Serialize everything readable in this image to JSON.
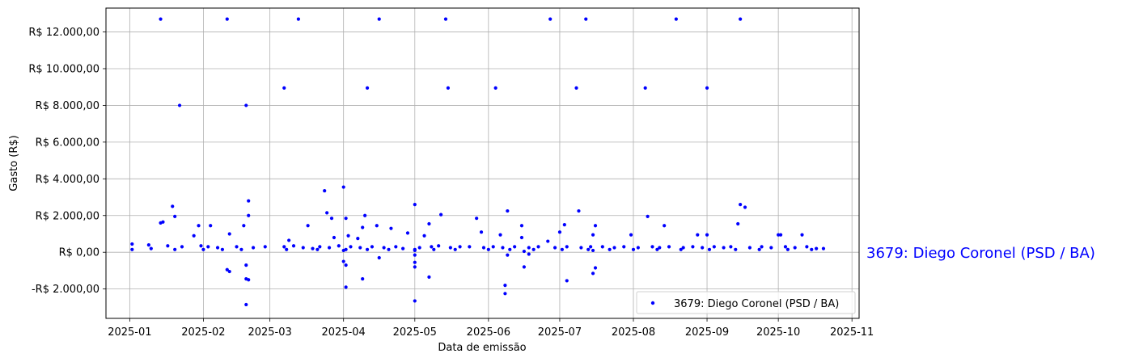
{
  "chart_data": {
    "type": "scatter",
    "title": "",
    "xlabel": "Data de emissão",
    "ylabel": "Gasto (R$)",
    "x_is_date": true,
    "xlim": [
      "2024-12-22",
      "2025-11-04"
    ],
    "ylim": [
      -3600,
      13300
    ],
    "xticks": [
      "2025-01-01",
      "2025-02-01",
      "2025-03-01",
      "2025-04-01",
      "2025-05-01",
      "2025-06-01",
      "2025-07-01",
      "2025-08-01",
      "2025-09-01",
      "2025-10-01",
      "2025-11-01"
    ],
    "xtick_labels": [
      "2025-01",
      "2025-02",
      "2025-03",
      "2025-04",
      "2025-05",
      "2025-06",
      "2025-07",
      "2025-08",
      "2025-09",
      "2025-10",
      "2025-11"
    ],
    "yticks": [
      -2000,
      0,
      2000,
      4000,
      6000,
      8000,
      10000,
      12000
    ],
    "ytick_labels": [
      "-R$ 2.000,00",
      "R$ 0,00",
      "R$ 2.000,00",
      "R$ 4.000,00",
      "R$ 6.000,00",
      "R$ 8.000,00",
      "R$ 10.000,00",
      "R$ 12.000,00"
    ],
    "grid": true,
    "legend_placement": "lower-right",
    "side_label": "3679: Diego Coronel (PSD / BA)",
    "series": [
      {
        "name": "3679: Diego Coronel (PSD / BA)",
        "color": "#0000ff",
        "points": [
          [
            "2025-01-14",
            12700
          ],
          [
            "2025-02-11",
            12700
          ],
          [
            "2025-03-13",
            12700
          ],
          [
            "2025-04-16",
            12700
          ],
          [
            "2025-05-14",
            12700
          ],
          [
            "2025-06-27",
            12700
          ],
          [
            "2025-07-12",
            12700
          ],
          [
            "2025-08-19",
            12700
          ],
          [
            "2025-09-15",
            12700
          ],
          [
            "2025-03-07",
            8950
          ],
          [
            "2025-04-11",
            8950
          ],
          [
            "2025-05-15",
            8950
          ],
          [
            "2025-06-04",
            8950
          ],
          [
            "2025-07-08",
            8950
          ],
          [
            "2025-08-06",
            8950
          ],
          [
            "2025-09-01",
            8950
          ],
          [
            "2025-01-22",
            8000
          ],
          [
            "2025-02-19",
            8000
          ],
          [
            "2025-04-01",
            3550
          ],
          [
            "2025-03-24",
            3350
          ],
          [
            "2025-02-20",
            2800
          ],
          [
            "2025-05-01",
            2600
          ],
          [
            "2025-09-15",
            2600
          ],
          [
            "2025-01-19",
            2500
          ],
          [
            "2025-09-17",
            2450
          ],
          [
            "2025-06-09",
            2250
          ],
          [
            "2025-07-09",
            2250
          ],
          [
            "2025-03-25",
            2150
          ],
          [
            "2025-05-12",
            2050
          ],
          [
            "2025-04-10",
            2000
          ],
          [
            "2025-02-20",
            2000
          ],
          [
            "2025-08-07",
            1950
          ],
          [
            "2025-01-20",
            1950
          ],
          [
            "2025-03-27",
            1850
          ],
          [
            "2025-04-02",
            1850
          ],
          [
            "2025-05-27",
            1850
          ],
          [
            "2025-01-15",
            1650
          ],
          [
            "2025-01-14",
            1600
          ],
          [
            "2025-09-14",
            1550
          ],
          [
            "2025-05-07",
            1550
          ],
          [
            "2025-07-03",
            1500
          ],
          [
            "2025-02-18",
            1450
          ],
          [
            "2025-03-17",
            1450
          ],
          [
            "2025-04-15",
            1450
          ],
          [
            "2025-06-15",
            1450
          ],
          [
            "2025-07-16",
            1450
          ],
          [
            "2025-08-14",
            1450
          ],
          [
            "2025-01-30",
            1450
          ],
          [
            "2025-02-04",
            1450
          ],
          [
            "2025-04-09",
            1350
          ],
          [
            "2025-04-21",
            1300
          ],
          [
            "2025-07-01",
            1100
          ],
          [
            "2025-05-29",
            1100
          ],
          [
            "2025-08-28",
            950
          ],
          [
            "2025-10-01",
            950
          ],
          [
            "2025-10-02",
            950
          ],
          [
            "2025-10-11",
            950
          ],
          [
            "2025-04-28",
            1050
          ],
          [
            "2025-02-12",
            1000
          ],
          [
            "2025-07-15",
            950
          ],
          [
            "2025-09-01",
            950
          ],
          [
            "2025-07-31",
            950
          ],
          [
            "2025-06-06",
            950
          ],
          [
            "2025-04-03",
            900
          ],
          [
            "2025-01-28",
            900
          ],
          [
            "2025-05-05",
            900
          ],
          [
            "2025-03-28",
            800
          ],
          [
            "2025-06-15",
            800
          ],
          [
            "2025-03-09",
            650
          ],
          [
            "2025-06-26",
            600
          ],
          [
            "2025-04-07",
            750
          ],
          [
            "2025-01-02",
            450
          ],
          [
            "2025-01-09",
            400
          ],
          [
            "2025-01-17",
            350
          ],
          [
            "2025-01-23",
            300
          ],
          [
            "2025-01-31",
            350
          ],
          [
            "2025-02-03",
            300
          ],
          [
            "2025-02-07",
            250
          ],
          [
            "2025-02-15",
            300
          ],
          [
            "2025-02-22",
            250
          ],
          [
            "2025-02-27",
            300
          ],
          [
            "2025-03-07",
            300
          ],
          [
            "2025-03-11",
            350
          ],
          [
            "2025-03-15",
            250
          ],
          [
            "2025-03-19",
            200
          ],
          [
            "2025-03-22",
            300
          ],
          [
            "2025-03-26",
            250
          ],
          [
            "2025-03-30",
            350
          ],
          [
            "2025-04-04",
            300
          ],
          [
            "2025-04-08",
            250
          ],
          [
            "2025-04-13",
            300
          ],
          [
            "2025-04-18",
            250
          ],
          [
            "2025-04-23",
            300
          ],
          [
            "2025-04-26",
            200
          ],
          [
            "2025-05-03",
            250
          ],
          [
            "2025-05-08",
            300
          ],
          [
            "2025-05-11",
            350
          ],
          [
            "2025-05-16",
            250
          ],
          [
            "2025-05-20",
            300
          ],
          [
            "2025-05-24",
            300
          ],
          [
            "2025-05-30",
            250
          ],
          [
            "2025-06-03",
            300
          ],
          [
            "2025-06-07",
            250
          ],
          [
            "2025-06-12",
            300
          ],
          [
            "2025-06-18",
            250
          ],
          [
            "2025-06-22",
            300
          ],
          [
            "2025-06-29",
            250
          ],
          [
            "2025-07-04",
            300
          ],
          [
            "2025-07-10",
            250
          ],
          [
            "2025-07-14",
            300
          ],
          [
            "2025-07-19",
            300
          ],
          [
            "2025-07-24",
            250
          ],
          [
            "2025-07-28",
            300
          ],
          [
            "2025-08-03",
            250
          ],
          [
            "2025-08-09",
            300
          ],
          [
            "2025-08-12",
            250
          ],
          [
            "2025-08-16",
            300
          ],
          [
            "2025-08-22",
            250
          ],
          [
            "2025-08-26",
            300
          ],
          [
            "2025-08-30",
            250
          ],
          [
            "2025-09-04",
            300
          ],
          [
            "2025-09-08",
            250
          ],
          [
            "2025-09-11",
            300
          ],
          [
            "2025-09-19",
            250
          ],
          [
            "2025-09-24",
            300
          ],
          [
            "2025-09-28",
            250
          ],
          [
            "2025-10-04",
            300
          ],
          [
            "2025-10-08",
            250
          ],
          [
            "2025-10-13",
            300
          ],
          [
            "2025-10-17",
            200
          ],
          [
            "2025-10-20",
            200
          ],
          [
            "2025-01-02",
            150
          ],
          [
            "2025-01-10",
            200
          ],
          [
            "2025-01-20",
            150
          ],
          [
            "2025-02-01",
            150
          ],
          [
            "2025-02-09",
            150
          ],
          [
            "2025-02-17",
            150
          ],
          [
            "2025-03-08",
            150
          ],
          [
            "2025-03-21",
            150
          ],
          [
            "2025-04-02",
            150
          ],
          [
            "2025-04-11",
            150
          ],
          [
            "2025-04-20",
            150
          ],
          [
            "2025-05-01",
            150
          ],
          [
            "2025-05-09",
            150
          ],
          [
            "2025-05-18",
            150
          ],
          [
            "2025-06-01",
            150
          ],
          [
            "2025-06-10",
            150
          ],
          [
            "2025-06-20",
            150
          ],
          [
            "2025-07-02",
            150
          ],
          [
            "2025-07-13",
            150
          ],
          [
            "2025-07-22",
            150
          ],
          [
            "2025-08-01",
            150
          ],
          [
            "2025-08-11",
            150
          ],
          [
            "2025-08-21",
            150
          ],
          [
            "2025-09-02",
            150
          ],
          [
            "2025-09-13",
            150
          ],
          [
            "2025-09-23",
            150
          ],
          [
            "2025-10-05",
            150
          ],
          [
            "2025-10-15",
            150
          ],
          [
            "2025-04-01",
            100
          ],
          [
            "2025-05-01",
            100
          ],
          [
            "2025-06-16",
            50
          ],
          [
            "2025-07-15",
            100
          ],
          [
            "2025-05-01",
            -150
          ],
          [
            "2025-04-16",
            -300
          ],
          [
            "2025-06-09",
            -150
          ],
          [
            "2025-06-18",
            -100
          ],
          [
            "2025-04-01",
            -500
          ],
          [
            "2025-04-02",
            -700
          ],
          [
            "2025-05-01",
            -550
          ],
          [
            "2025-05-01",
            -800
          ],
          [
            "2025-02-19",
            -700
          ],
          [
            "2025-06-16",
            -800
          ],
          [
            "2025-07-16",
            -850
          ],
          [
            "2025-02-11",
            -950
          ],
          [
            "2025-02-12",
            -1050
          ],
          [
            "2025-07-15",
            -1150
          ],
          [
            "2025-05-07",
            -1350
          ],
          [
            "2025-04-09",
            -1450
          ],
          [
            "2025-02-19",
            -1450
          ],
          [
            "2025-02-20",
            -1500
          ],
          [
            "2025-07-04",
            -1550
          ],
          [
            "2025-06-08",
            -1800
          ],
          [
            "2025-04-02",
            -1900
          ],
          [
            "2025-06-08",
            -2250
          ],
          [
            "2025-05-01",
            -2650
          ],
          [
            "2025-02-19",
            -2850
          ]
        ]
      }
    ]
  }
}
